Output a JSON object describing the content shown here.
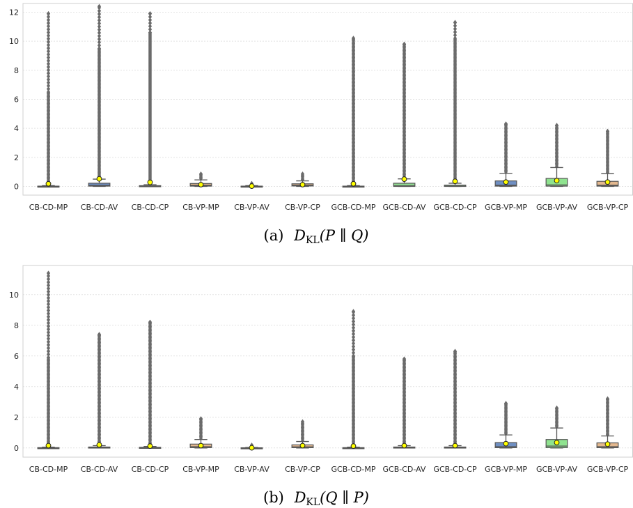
{
  "chart_data": [
    {
      "type": "box",
      "caption": {
        "label": "(a)",
        "math": "D",
        "sub": "KL",
        "args": "(P ∥ Q)"
      },
      "categories": [
        "CB-CD-MP",
        "CB-CD-AV",
        "CB-CD-CP",
        "CB-VP-MP",
        "CB-VP-AV",
        "CB-VP-CP",
        "GCB-CD-MP",
        "GCB-CD-AV",
        "GCB-CD-CP",
        "GCB-VP-MP",
        "GCB-VP-AV",
        "GCB-VP-CP"
      ],
      "box_colors": [
        "#6f8fc2",
        "#6f8fc2",
        "#6f8fc2",
        "#e3b88f",
        "#e3b88f",
        "#e3b88f",
        "#8fd68f",
        "#8fd68f",
        "#8fd68f",
        "#6f8fc2",
        "#8fe38f",
        "#e3b88f"
      ],
      "ylim": [
        -0.6,
        12.6
      ],
      "yticks": [
        0,
        2,
        4,
        6,
        8,
        10,
        12
      ],
      "grid": true,
      "legend": "none",
      "series": [
        {
          "q1": 0.0,
          "median": 0.0,
          "q3": 0.02,
          "whisker_low": 0.0,
          "whisker_high": 0.05,
          "mean": 0.18,
          "flier_max": 11.9,
          "flier_sparse_from": 6.5
        },
        {
          "q1": 0.02,
          "median": 0.07,
          "q3": 0.22,
          "whisker_low": 0.0,
          "whisker_high": 0.5,
          "mean": 0.52,
          "flier_max": 12.4,
          "flier_sparse_from": 9.5
        },
        {
          "q1": 0.0,
          "median": 0.01,
          "q3": 0.05,
          "whisker_low": 0.0,
          "whisker_high": 0.12,
          "mean": 0.28,
          "flier_max": 11.9,
          "flier_sparse_from": 10.6
        },
        {
          "q1": 0.02,
          "median": 0.08,
          "q3": 0.2,
          "whisker_low": 0.0,
          "whisker_high": 0.45,
          "mean": 0.12,
          "flier_max": 0.85,
          "flier_sparse_from": 0.85
        },
        {
          "q1": 0.0,
          "median": 0.0,
          "q3": 0.02,
          "whisker_low": 0.0,
          "whisker_high": 0.05,
          "mean": 0.02,
          "flier_max": 0.2,
          "flier_sparse_from": 0.2
        },
        {
          "q1": 0.03,
          "median": 0.08,
          "q3": 0.18,
          "whisker_low": 0.0,
          "whisker_high": 0.38,
          "mean": 0.12,
          "flier_max": 0.85,
          "flier_sparse_from": 0.85
        },
        {
          "q1": 0.0,
          "median": 0.0,
          "q3": 0.02,
          "whisker_low": 0.0,
          "whisker_high": 0.05,
          "mean": 0.18,
          "flier_max": 10.2,
          "flier_sparse_from": 10.2
        },
        {
          "q1": 0.0,
          "median": 0.04,
          "q3": 0.22,
          "whisker_low": 0.0,
          "whisker_high": 0.52,
          "mean": 0.5,
          "flier_max": 9.8,
          "flier_sparse_from": 9.8
        },
        {
          "q1": 0.0,
          "median": 0.02,
          "q3": 0.09,
          "whisker_low": 0.0,
          "whisker_high": 0.22,
          "mean": 0.35,
          "flier_max": 11.3,
          "flier_sparse_from": 10.2
        },
        {
          "q1": 0.02,
          "median": 0.08,
          "q3": 0.38,
          "whisker_low": 0.0,
          "whisker_high": 0.9,
          "mean": 0.3,
          "flier_max": 4.3,
          "flier_sparse_from": 4.3
        },
        {
          "q1": 0.02,
          "median": 0.1,
          "q3": 0.55,
          "whisker_low": 0.0,
          "whisker_high": 1.3,
          "mean": 0.4,
          "flier_max": 4.2,
          "flier_sparse_from": 4.2
        },
        {
          "q1": 0.02,
          "median": 0.08,
          "q3": 0.35,
          "whisker_low": 0.0,
          "whisker_high": 0.88,
          "mean": 0.3,
          "flier_max": 3.8,
          "flier_sparse_from": 3.8
        }
      ]
    },
    {
      "type": "box",
      "caption": {
        "label": "(b)",
        "math": "D",
        "sub": "KL",
        "args": "(Q ∥ P)"
      },
      "categories": [
        "CB-CD-MP",
        "CB-CD-AV",
        "CB-CD-CP",
        "CB-VP-MP",
        "CB-VP-AV",
        "CB-VP-CP",
        "GCB-CD-MP",
        "GCB-CD-AV",
        "GCB-CD-CP",
        "GCB-VP-MP",
        "GCB-VP-AV",
        "GCB-VP-CP"
      ],
      "box_colors": [
        "#6f8fc2",
        "#6f8fc2",
        "#6f8fc2",
        "#e3b88f",
        "#e3b88f",
        "#e3b88f",
        "#8fd68f",
        "#8fd68f",
        "#8fd68f",
        "#6f8fc2",
        "#8fe38f",
        "#e3b88f"
      ],
      "ylim": [
        -0.6,
        11.9
      ],
      "yticks": [
        0,
        2,
        4,
        6,
        8,
        10
      ],
      "grid": true,
      "legend": "none",
      "series": [
        {
          "q1": 0.0,
          "median": 0.0,
          "q3": 0.02,
          "whisker_low": 0.0,
          "whisker_high": 0.05,
          "mean": 0.15,
          "flier_max": 11.4,
          "flier_sparse_from": 5.9
        },
        {
          "q1": 0.0,
          "median": 0.02,
          "q3": 0.06,
          "whisker_low": 0.0,
          "whisker_high": 0.15,
          "mean": 0.2,
          "flier_max": 7.4,
          "flier_sparse_from": 7.4
        },
        {
          "q1": 0.0,
          "median": 0.01,
          "q3": 0.04,
          "whisker_low": 0.0,
          "whisker_high": 0.1,
          "mean": 0.12,
          "flier_max": 8.2,
          "flier_sparse_from": 8.2
        },
        {
          "q1": 0.02,
          "median": 0.08,
          "q3": 0.25,
          "whisker_low": 0.0,
          "whisker_high": 0.55,
          "mean": 0.15,
          "flier_max": 1.9,
          "flier_sparse_from": 1.9
        },
        {
          "q1": 0.0,
          "median": 0.0,
          "q3": 0.01,
          "whisker_low": 0.0,
          "whisker_high": 0.03,
          "mean": 0.01,
          "flier_max": 0.18,
          "flier_sparse_from": 0.18
        },
        {
          "q1": 0.02,
          "median": 0.07,
          "q3": 0.2,
          "whisker_low": 0.0,
          "whisker_high": 0.42,
          "mean": 0.15,
          "flier_max": 1.7,
          "flier_sparse_from": 1.7
        },
        {
          "q1": 0.0,
          "median": 0.0,
          "q3": 0.02,
          "whisker_low": 0.0,
          "whisker_high": 0.05,
          "mean": 0.12,
          "flier_max": 8.9,
          "flier_sparse_from": 6.0
        },
        {
          "q1": 0.0,
          "median": 0.02,
          "q3": 0.06,
          "whisker_low": 0.0,
          "whisker_high": 0.15,
          "mean": 0.15,
          "flier_max": 5.8,
          "flier_sparse_from": 5.8
        },
        {
          "q1": 0.0,
          "median": 0.02,
          "q3": 0.06,
          "whisker_low": 0.0,
          "whisker_high": 0.15,
          "mean": 0.15,
          "flier_max": 6.3,
          "flier_sparse_from": 6.3
        },
        {
          "q1": 0.02,
          "median": 0.08,
          "q3": 0.35,
          "whisker_low": 0.0,
          "whisker_high": 0.85,
          "mean": 0.28,
          "flier_max": 2.9,
          "flier_sparse_from": 2.9
        },
        {
          "q1": 0.02,
          "median": 0.12,
          "q3": 0.55,
          "whisker_low": 0.0,
          "whisker_high": 1.3,
          "mean": 0.35,
          "flier_max": 2.6,
          "flier_sparse_from": 2.6
        },
        {
          "q1": 0.02,
          "median": 0.08,
          "q3": 0.33,
          "whisker_low": 0.0,
          "whisker_high": 0.78,
          "mean": 0.25,
          "flier_max": 3.2,
          "flier_sparse_from": 3.2
        }
      ]
    }
  ]
}
